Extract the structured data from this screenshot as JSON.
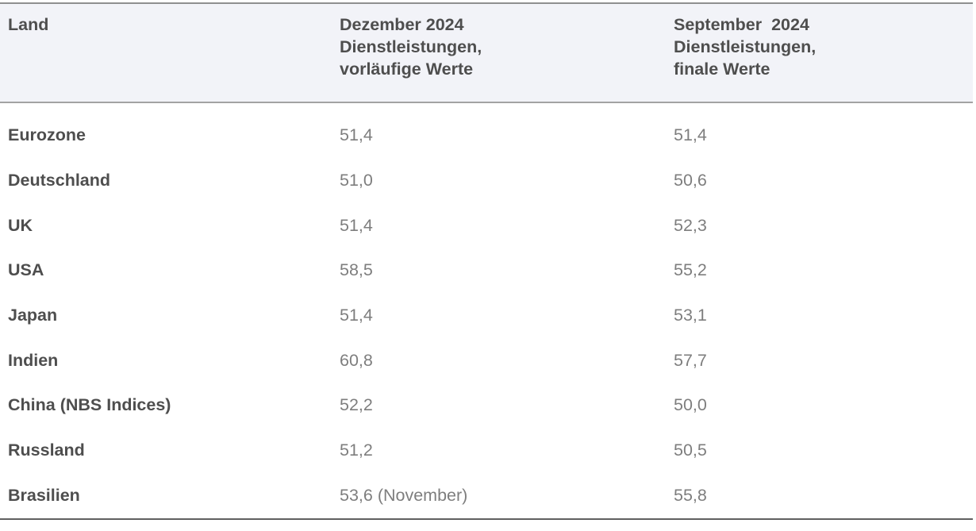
{
  "theme": {
    "header_bg": "#f2f3f8",
    "header_text": "#4e4e4e",
    "label_text": "#4e4e4e",
    "value_text": "#7e7e7e",
    "top_border": "#8f8f8f",
    "header_separator": "#a3a3a3",
    "bottom_border": "#606060"
  },
  "table": {
    "columns": [
      {
        "label": "Land"
      },
      {
        "label": "Dezember 2024\nDienstleistungen,\nvorläufige Werte"
      },
      {
        "label": "September  2024\nDienstleistungen,\nfinale Werte"
      }
    ],
    "rows": [
      {
        "land": "Eurozone",
        "dezember": "51,4",
        "september": "51,4"
      },
      {
        "land": "Deutschland",
        "dezember": "51,0",
        "september": "50,6"
      },
      {
        "land": "UK",
        "dezember": "51,4",
        "september": "52,3"
      },
      {
        "land": "USA",
        "dezember": "58,5",
        "september": "55,2"
      },
      {
        "land": "Japan",
        "dezember": "51,4",
        "september": "53,1"
      },
      {
        "land": "Indien",
        "dezember": "60,8",
        "september": "57,7"
      },
      {
        "land": "China (NBS Indices)",
        "dezember": "52,2",
        "september": "50,0"
      },
      {
        "land": "Russland",
        "dezember": "51,2",
        "september": "50,5"
      },
      {
        "land": "Brasilien",
        "dezember": "53,6 (November)",
        "september": "55,8"
      }
    ]
  },
  "chart_data": {
    "type": "table",
    "columns": [
      "Land",
      "Dezember 2024 Dienstleistungen, vorläufige Werte",
      "September 2024 Dienstleistungen, finale Werte"
    ],
    "categories": [
      "Eurozone",
      "Deutschland",
      "UK",
      "USA",
      "Japan",
      "Indien",
      "China (NBS Indices)",
      "Russland",
      "Brasilien"
    ],
    "series": [
      {
        "name": "Dezember 2024 Dienstleistungen, vorläufige Werte",
        "values": [
          51.4,
          51.0,
          51.4,
          58.5,
          51.4,
          60.8,
          52.2,
          51.2,
          53.6
        ]
      },
      {
        "name": "September 2024 Dienstleistungen, finale Werte",
        "values": [
          51.4,
          50.6,
          52.3,
          55.2,
          53.1,
          57.7,
          50.0,
          50.5,
          55.8
        ]
      }
    ],
    "annotations": [
      "Brasilien Dezember value shown as 53,6 (November)"
    ],
    "number_format": "decimal comma (German)"
  }
}
